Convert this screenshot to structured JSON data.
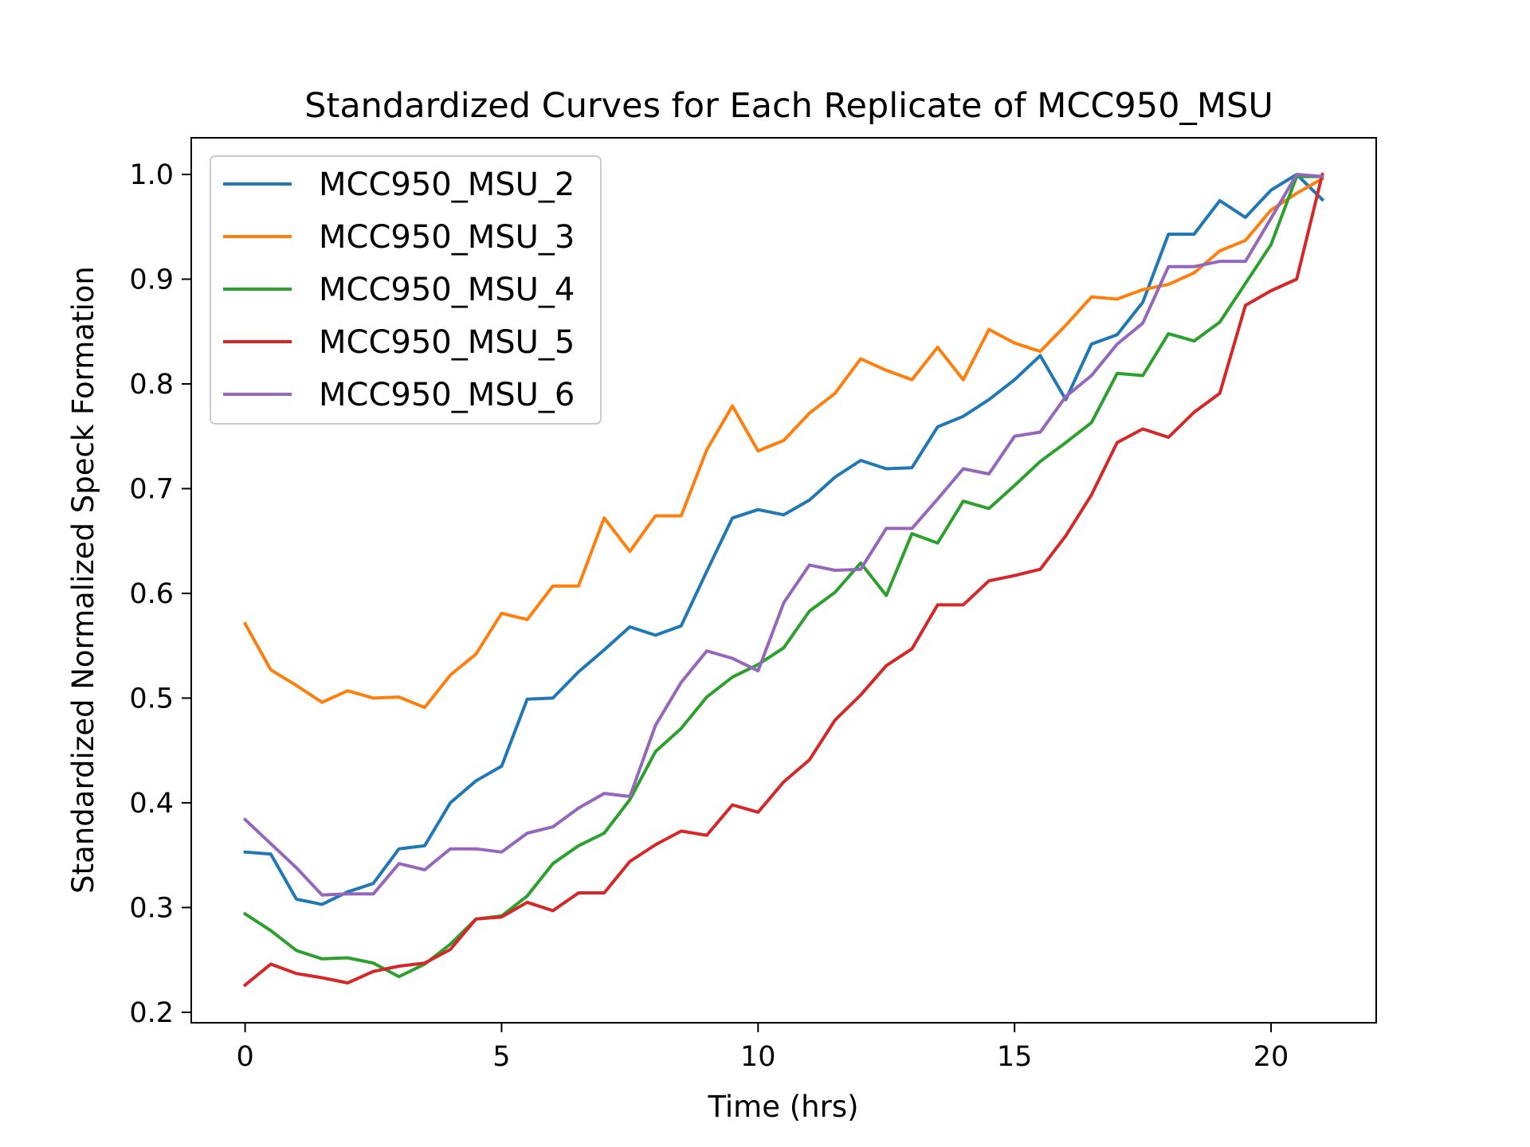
{
  "chart_data": {
    "type": "line",
    "title": "Standardized Curves for Each Replicate of MCC950_MSU",
    "xlabel": "Time (hrs)",
    "ylabel": "Standardized Normalized Speck Formation",
    "xlim": [
      -1.05,
      22.05
    ],
    "ylim": [
      0.19,
      1.035
    ],
    "x_ticks": [
      0,
      5,
      10,
      15,
      20
    ],
    "x_tick_labels": [
      "0",
      "5",
      "10",
      "15",
      "20"
    ],
    "y_ticks": [
      0.2,
      0.3,
      0.4,
      0.5,
      0.6,
      0.7,
      0.8,
      0.9,
      1.0
    ],
    "y_tick_labels": [
      "0.2",
      "0.3",
      "0.4",
      "0.5",
      "0.6",
      "0.7",
      "0.8",
      "0.9",
      "1.0"
    ],
    "grid": false,
    "legend_position": "upper-left",
    "x": [
      0,
      0.5,
      1,
      1.5,
      2,
      2.5,
      3,
      3.5,
      4,
      4.5,
      5,
      5.5,
      6,
      6.5,
      7,
      7.5,
      8,
      8.5,
      9,
      9.5,
      10,
      10.5,
      11,
      11.5,
      12,
      12.5,
      13,
      13.5,
      14,
      14.5,
      15,
      15.5,
      16,
      16.5,
      17,
      17.5,
      18,
      18.5,
      19,
      19.5,
      20,
      20.5,
      21
    ],
    "series": [
      {
        "name": "MCC950_MSU_2",
        "color": "#1f77b4",
        "values": [
          0.353,
          0.351,
          0.308,
          0.303,
          0.315,
          0.323,
          0.356,
          0.359,
          0.4,
          0.421,
          0.435,
          0.499,
          0.5,
          0.525,
          0.546,
          0.568,
          0.56,
          0.569,
          0.621,
          0.672,
          0.68,
          0.675,
          0.689,
          0.711,
          0.727,
          0.719,
          0.72,
          0.759,
          0.769,
          0.785,
          0.804,
          0.827,
          0.785,
          0.838,
          0.847,
          0.878,
          0.943,
          0.943,
          0.975,
          0.959,
          0.985,
          1.0,
          0.976
        ]
      },
      {
        "name": "MCC950_MSU_3",
        "color": "#ff7f0e",
        "values": [
          0.571,
          0.527,
          0.512,
          0.496,
          0.507,
          0.5,
          0.501,
          0.491,
          0.522,
          0.542,
          0.581,
          0.575,
          0.607,
          0.607,
          0.672,
          0.64,
          0.674,
          0.674,
          0.737,
          0.779,
          0.736,
          0.746,
          0.772,
          0.791,
          0.824,
          0.813,
          0.804,
          0.835,
          0.804,
          0.852,
          0.839,
          0.831,
          0.856,
          0.883,
          0.881,
          0.89,
          0.895,
          0.906,
          0.927,
          0.937,
          0.966,
          0.982,
          0.996
        ]
      },
      {
        "name": "MCC950_MSU_4",
        "color": "#2ca02c",
        "values": [
          0.294,
          0.278,
          0.259,
          0.251,
          0.252,
          0.247,
          0.234,
          0.246,
          0.265,
          0.289,
          0.292,
          0.311,
          0.342,
          0.359,
          0.371,
          0.403,
          0.449,
          0.471,
          0.501,
          0.52,
          0.532,
          0.548,
          0.583,
          0.601,
          0.629,
          0.598,
          0.657,
          0.648,
          0.688,
          0.681,
          0.703,
          0.726,
          0.744,
          0.763,
          0.81,
          0.808,
          0.848,
          0.841,
          0.859,
          0.896,
          0.933,
          0.998,
          0.998
        ]
      },
      {
        "name": "MCC950_MSU_5",
        "color": "#d62728",
        "values": [
          0.226,
          0.246,
          0.237,
          0.233,
          0.228,
          0.239,
          0.244,
          0.247,
          0.26,
          0.289,
          0.291,
          0.305,
          0.297,
          0.314,
          0.314,
          0.344,
          0.36,
          0.373,
          0.369,
          0.398,
          0.391,
          0.42,
          0.441,
          0.479,
          0.503,
          0.531,
          0.547,
          0.589,
          0.589,
          0.612,
          0.617,
          0.623,
          0.655,
          0.694,
          0.744,
          0.757,
          0.749,
          0.773,
          0.791,
          0.875,
          0.889,
          0.9,
          1.0
        ]
      },
      {
        "name": "MCC950_MSU_6",
        "color": "#9467bd",
        "values": [
          0.384,
          0.361,
          0.338,
          0.312,
          0.313,
          0.313,
          0.342,
          0.336,
          0.356,
          0.356,
          0.353,
          0.371,
          0.377,
          0.395,
          0.409,
          0.406,
          0.474,
          0.515,
          0.545,
          0.538,
          0.526,
          0.591,
          0.627,
          0.622,
          0.623,
          0.662,
          0.662,
          0.69,
          0.719,
          0.714,
          0.75,
          0.754,
          0.788,
          0.808,
          0.838,
          0.858,
          0.912,
          0.912,
          0.917,
          0.917,
          0.958,
          1.0,
          0.998
        ]
      }
    ]
  }
}
